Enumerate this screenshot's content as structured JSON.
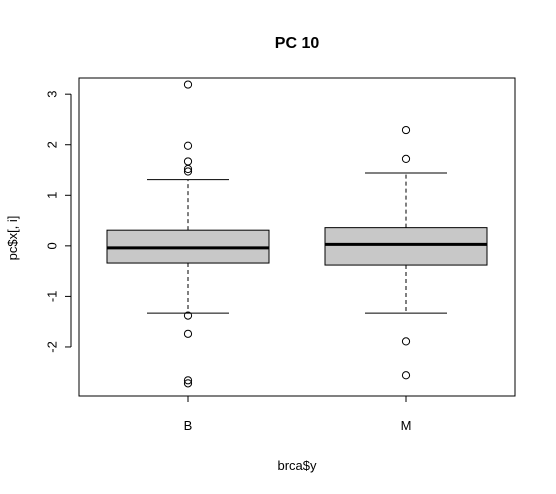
{
  "chart_data": {
    "type": "boxplot",
    "title": "PC 10",
    "xlabel": "brca$y",
    "ylabel": "pc$x[, i]",
    "categories": [
      "B",
      "M"
    ],
    "yticks": [
      -2,
      -1,
      0,
      1,
      2,
      3
    ],
    "ytick_labels": [
      "-2",
      "-1",
      "0",
      "1",
      "2",
      "3"
    ],
    "ylim": [
      -2.97,
      3.32
    ],
    "box_fill": "#c8c8c8",
    "grid": false,
    "boxes": [
      {
        "category": "B",
        "whisker_low": -1.33,
        "q1": -0.34,
        "median": -0.04,
        "q3": 0.31,
        "whisker_high": 1.31,
        "outliers": [
          3.19,
          1.98,
          1.67,
          1.52,
          1.47,
          -1.38,
          -1.74,
          -2.66,
          -2.72
        ]
      },
      {
        "category": "M",
        "whisker_low": -1.33,
        "q1": -0.38,
        "median": 0.03,
        "q3": 0.36,
        "whisker_high": 1.44,
        "outliers": [
          2.29,
          1.72,
          -1.89,
          -2.56
        ]
      }
    ]
  }
}
